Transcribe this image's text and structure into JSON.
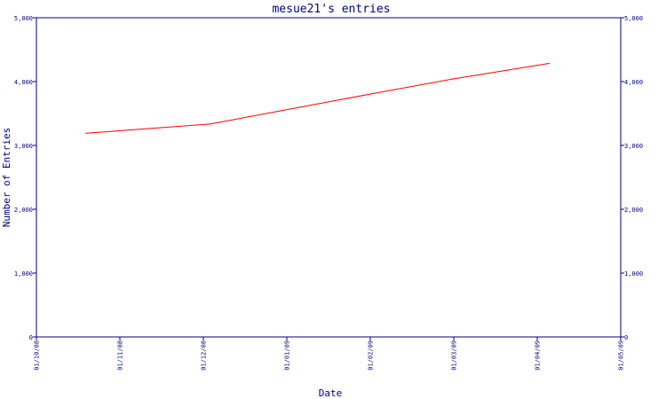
{
  "chart_data": {
    "type": "line",
    "title": "mesue21's entries",
    "xlabel": "Date",
    "ylabel": "Number of Entries",
    "x_tick_labels": [
      "01/10/08",
      "01/11/08",
      "01/12/08",
      "01/01/09",
      "01/02/09",
      "01/03/09",
      "01/04/09",
      "01/05/09"
    ],
    "y_tick_labels": [
      "0",
      "1,000",
      "2,000",
      "3,000",
      "4,000",
      "5,000"
    ],
    "y_ticks": [
      0,
      1000,
      2000,
      3000,
      4000,
      5000
    ],
    "ylim": [
      0,
      5000
    ],
    "xlim": [
      "2008-10-01",
      "2009-05-01"
    ],
    "grid": false,
    "series": [
      {
        "x": [
          "2008-10-19",
          "2008-12-03",
          "2009-01-01",
          "2009-02-01",
          "2009-03-01",
          "2009-04-05"
        ],
        "values": [
          3190,
          3335,
          3570,
          3820,
          4040,
          4285
        ]
      }
    ],
    "colors": {
      "line": "#ff0000",
      "axis": "#000080",
      "text": "#000080"
    }
  }
}
